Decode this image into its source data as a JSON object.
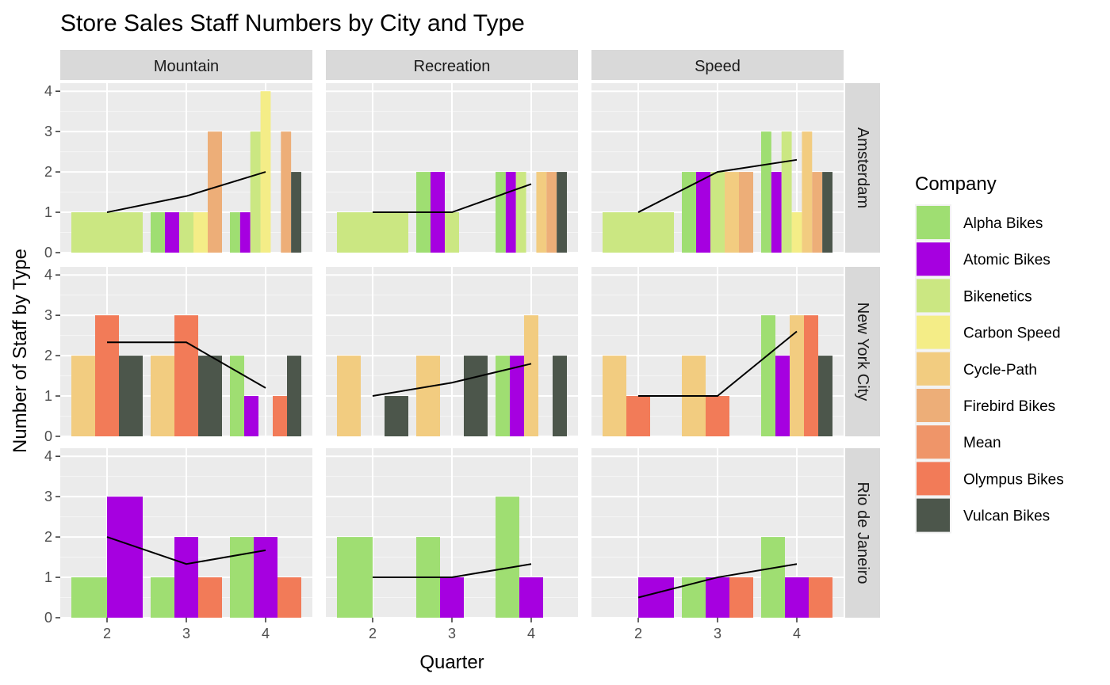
{
  "chart_data": {
    "type": "bar",
    "title": "Store Sales Staff Numbers by City and Type",
    "xlabel": "Quarter",
    "ylabel": "Number of Staff by Type",
    "x_ticks": [
      "2",
      "3",
      "4"
    ],
    "y_ticks": [
      "0",
      "1",
      "2",
      "3",
      "4"
    ],
    "ylim": [
      0,
      4.2
    ],
    "grid": true,
    "columns": [
      "Mountain",
      "Recreation",
      "Speed"
    ],
    "rows": [
      "Amsterdam",
      "New York City",
      "Rio de Janeiro"
    ],
    "legend": {
      "title": "Company",
      "placement": "right",
      "items": [
        {
          "label": "Alpha Bikes",
          "color": "#9fde72"
        },
        {
          "label": "Atomic Bikes",
          "color": "#a600e0"
        },
        {
          "label": "Bikenetics",
          "color": "#cbe782"
        },
        {
          "label": "Carbon Speed",
          "color": "#f4ed87"
        },
        {
          "label": "Cycle-Path",
          "color": "#f2cc80"
        },
        {
          "label": "Firebird Bikes",
          "color": "#edae78"
        },
        {
          "label": "Mean",
          "color": "#ef9569"
        },
        {
          "label": "Olympus Bikes",
          "color": "#f27b58"
        },
        {
          "label": "Vulcan Bikes",
          "color": "#4c564b"
        }
      ]
    },
    "panels": [
      {
        "row": "Amsterdam",
        "col": "Mountain",
        "mean": [
          1.0,
          1.4,
          2.0
        ],
        "quarters": [
          {
            "q": 2,
            "bars": [
              [
                "Bikenetics",
                1
              ]
            ]
          },
          {
            "q": 3,
            "bars": [
              [
                "Alpha Bikes",
                1
              ],
              [
                "Atomic Bikes",
                1
              ],
              [
                "Bikenetics",
                1
              ],
              [
                "Carbon Speed",
                1
              ],
              [
                "Firebird Bikes",
                3
              ]
            ]
          },
          {
            "q": 4,
            "bars": [
              [
                "Alpha Bikes",
                1
              ],
              [
                "Atomic Bikes",
                1
              ],
              [
                "Bikenetics",
                3
              ],
              [
                "Carbon Speed",
                4
              ],
              [
                "Cycle-Path",
                0
              ],
              [
                "Firebird Bikes",
                3
              ],
              [
                "Vulcan Bikes",
                2
              ]
            ]
          }
        ]
      },
      {
        "row": "Amsterdam",
        "col": "Recreation",
        "mean": [
          1.0,
          1.0,
          1.7
        ],
        "quarters": [
          {
            "q": 2,
            "bars": [
              [
                "Bikenetics",
                1
              ]
            ]
          },
          {
            "q": 3,
            "bars": [
              [
                "Alpha Bikes",
                2
              ],
              [
                "Atomic Bikes",
                2
              ],
              [
                "Bikenetics",
                1
              ],
              [
                "Carbon Speed",
                0
              ],
              [
                "Cycle-Path",
                0
              ]
            ]
          },
          {
            "q": 4,
            "bars": [
              [
                "Alpha Bikes",
                2
              ],
              [
                "Atomic Bikes",
                2
              ],
              [
                "Bikenetics",
                2
              ],
              [
                "Carbon Speed",
                0
              ],
              [
                "Cycle-Path",
                2
              ],
              [
                "Firebird Bikes",
                2
              ],
              [
                "Vulcan Bikes",
                2
              ]
            ]
          }
        ]
      },
      {
        "row": "Amsterdam",
        "col": "Speed",
        "mean": [
          1.0,
          2.0,
          2.3
        ],
        "quarters": [
          {
            "q": 2,
            "bars": [
              [
                "Bikenetics",
                1
              ]
            ]
          },
          {
            "q": 3,
            "bars": [
              [
                "Alpha Bikes",
                2
              ],
              [
                "Atomic Bikes",
                2
              ],
              [
                "Bikenetics",
                2
              ],
              [
                "Cycle-Path",
                2
              ],
              [
                "Firebird Bikes",
                2
              ]
            ]
          },
          {
            "q": 4,
            "bars": [
              [
                "Alpha Bikes",
                3
              ],
              [
                "Atomic Bikes",
                2
              ],
              [
                "Bikenetics",
                3
              ],
              [
                "Carbon Speed",
                1
              ],
              [
                "Cycle-Path",
                3
              ],
              [
                "Firebird Bikes",
                2
              ],
              [
                "Vulcan Bikes",
                2
              ]
            ]
          }
        ]
      },
      {
        "row": "New York City",
        "col": "Mountain",
        "mean": [
          2.33,
          2.33,
          1.2
        ],
        "quarters": [
          {
            "q": 2,
            "bars": [
              [
                "Cycle-Path",
                2
              ],
              [
                "Olympus Bikes",
                3
              ],
              [
                "Vulcan Bikes",
                2
              ]
            ]
          },
          {
            "q": 3,
            "bars": [
              [
                "Cycle-Path",
                2
              ],
              [
                "Olympus Bikes",
                3
              ],
              [
                "Vulcan Bikes",
                2
              ]
            ]
          },
          {
            "q": 4,
            "bars": [
              [
                "Alpha Bikes",
                2
              ],
              [
                "Atomic Bikes",
                1
              ],
              [
                "Cycle-Path",
                0
              ],
              [
                "Olympus Bikes",
                1
              ],
              [
                "Vulcan Bikes",
                2
              ]
            ]
          }
        ]
      },
      {
        "row": "New York City",
        "col": "Recreation",
        "mean": [
          1.0,
          1.33,
          1.8
        ],
        "quarters": [
          {
            "q": 2,
            "bars": [
              [
                "Cycle-Path",
                2
              ],
              [
                "Olympus Bikes",
                0
              ],
              [
                "Vulcan Bikes",
                1
              ]
            ]
          },
          {
            "q": 3,
            "bars": [
              [
                "Cycle-Path",
                2
              ],
              [
                "Olympus Bikes",
                0
              ],
              [
                "Vulcan Bikes",
                2
              ]
            ]
          },
          {
            "q": 4,
            "bars": [
              [
                "Alpha Bikes",
                2
              ],
              [
                "Atomic Bikes",
                2
              ],
              [
                "Cycle-Path",
                3
              ],
              [
                "Olympus Bikes",
                0
              ],
              [
                "Vulcan Bikes",
                2
              ]
            ]
          }
        ]
      },
      {
        "row": "New York City",
        "col": "Speed",
        "mean": [
          1.0,
          1.0,
          2.6
        ],
        "quarters": [
          {
            "q": 2,
            "bars": [
              [
                "Cycle-Path",
                2
              ],
              [
                "Olympus Bikes",
                1
              ],
              [
                "Vulcan Bikes",
                0
              ]
            ]
          },
          {
            "q": 3,
            "bars": [
              [
                "Cycle-Path",
                2
              ],
              [
                "Olympus Bikes",
                1
              ],
              [
                "Vulcan Bikes",
                0
              ]
            ]
          },
          {
            "q": 4,
            "bars": [
              [
                "Alpha Bikes",
                3
              ],
              [
                "Atomic Bikes",
                2
              ],
              [
                "Cycle-Path",
                3
              ],
              [
                "Olympus Bikes",
                3
              ],
              [
                "Vulcan Bikes",
                2
              ]
            ]
          }
        ]
      },
      {
        "row": "Rio de Janeiro",
        "col": "Mountain",
        "mean": [
          2.0,
          1.33,
          1.67
        ],
        "quarters": [
          {
            "q": 2,
            "bars": [
              [
                "Alpha Bikes",
                1
              ],
              [
                "Atomic Bikes",
                3
              ]
            ]
          },
          {
            "q": 3,
            "bars": [
              [
                "Alpha Bikes",
                1
              ],
              [
                "Atomic Bikes",
                2
              ],
              [
                "Olympus Bikes",
                1
              ]
            ]
          },
          {
            "q": 4,
            "bars": [
              [
                "Alpha Bikes",
                2
              ],
              [
                "Atomic Bikes",
                2
              ],
              [
                "Olympus Bikes",
                1
              ]
            ]
          }
        ]
      },
      {
        "row": "Rio de Janeiro",
        "col": "Recreation",
        "mean": [
          1.0,
          1.0,
          1.33
        ],
        "quarters": [
          {
            "q": 2,
            "bars": [
              [
                "Alpha Bikes",
                2
              ],
              [
                "Atomic Bikes",
                0
              ]
            ]
          },
          {
            "q": 3,
            "bars": [
              [
                "Alpha Bikes",
                2
              ],
              [
                "Atomic Bikes",
                1
              ],
              [
                "Olympus Bikes",
                0
              ]
            ]
          },
          {
            "q": 4,
            "bars": [
              [
                "Alpha Bikes",
                3
              ],
              [
                "Atomic Bikes",
                1
              ],
              [
                "Olympus Bikes",
                0
              ]
            ]
          }
        ]
      },
      {
        "row": "Rio de Janeiro",
        "col": "Speed",
        "mean": [
          0.5,
          1.0,
          1.33
        ],
        "quarters": [
          {
            "q": 2,
            "bars": [
              [
                "Alpha Bikes",
                0
              ],
              [
                "Atomic Bikes",
                1
              ]
            ]
          },
          {
            "q": 3,
            "bars": [
              [
                "Alpha Bikes",
                1
              ],
              [
                "Atomic Bikes",
                1
              ],
              [
                "Olympus Bikes",
                1
              ]
            ]
          },
          {
            "q": 4,
            "bars": [
              [
                "Alpha Bikes",
                2
              ],
              [
                "Atomic Bikes",
                1
              ],
              [
                "Olympus Bikes",
                1
              ]
            ]
          }
        ]
      }
    ]
  }
}
